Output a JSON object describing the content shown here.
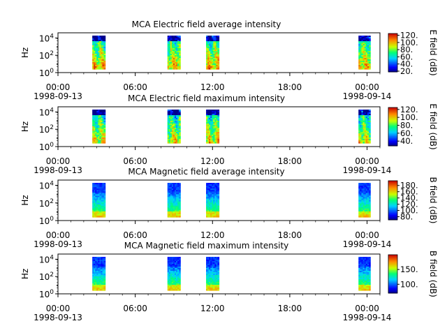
{
  "chart_data": [
    {
      "type": "heatmap",
      "title": "MCA  Electric field average intensity",
      "ylabel": "Hz",
      "y_scale": "log",
      "y_tick_labels": [
        "10^0",
        "10^2",
        "10^4"
      ],
      "x_tick_labels": [
        "00:00",
        "06:00",
        "12:00",
        "18:00",
        "00:00"
      ],
      "x_date_labels": [
        "1998-09-13",
        "1998-09-14"
      ],
      "xlim": [
        "1998-09-13 00:00",
        "1998-09-14 01:00"
      ],
      "colorbar": {
        "label": "E field (dB)",
        "range": [
          18,
          125
        ],
        "ticks": [
          "20.",
          "40.",
          "60.",
          "80.",
          "100.",
          "120."
        ]
      },
      "data_intervals": [
        [
          "02:40",
          "03:40"
        ],
        [
          "08:30",
          "09:30"
        ],
        [
          "11:30",
          "12:30"
        ],
        [
          "23:20",
          "00:15"
        ]
      ],
      "intensity_profile": "E-avg"
    },
    {
      "type": "heatmap",
      "title": "MCA  Electric field maximum intensity",
      "ylabel": "Hz",
      "y_scale": "log",
      "y_tick_labels": [
        "10^0",
        "10^2",
        "10^4"
      ],
      "x_tick_labels": [
        "00:00",
        "06:00",
        "12:00",
        "18:00",
        "00:00"
      ],
      "x_date_labels": [
        "1998-09-13",
        "1998-09-14"
      ],
      "xlim": [
        "1998-09-13 00:00",
        "1998-09-14 01:00"
      ],
      "colorbar": {
        "label": "E field (dB)",
        "range": [
          28,
          125
        ],
        "ticks": [
          "40.",
          "60.",
          "80.",
          "100.",
          "120."
        ]
      },
      "data_intervals": [
        [
          "02:40",
          "03:40"
        ],
        [
          "08:30",
          "09:30"
        ],
        [
          "11:30",
          "12:30"
        ],
        [
          "23:20",
          "00:15"
        ]
      ],
      "intensity_profile": "E-max"
    },
    {
      "type": "heatmap",
      "title": "MCA  Magnetic field average intensity",
      "ylabel": "Hz",
      "y_scale": "log",
      "y_tick_labels": [
        "10^0",
        "10^2",
        "10^4"
      ],
      "x_tick_labels": [
        "00:00",
        "06:00",
        "12:00",
        "18:00",
        "00:00"
      ],
      "x_date_labels": [
        "1998-09-13",
        "1998-09-14"
      ],
      "xlim": [
        "1998-09-13 00:00",
        "1998-09-14 01:00"
      ],
      "colorbar": {
        "label": "B field (dB)",
        "range": [
          70,
          195
        ],
        "ticks": [
          "80.",
          "100.",
          "120.",
          "140.",
          "160.",
          "180."
        ]
      },
      "data_intervals": [
        [
          "02:40",
          "03:40"
        ],
        [
          "08:30",
          "09:30"
        ],
        [
          "11:30",
          "12:30"
        ],
        [
          "23:20",
          "00:15"
        ]
      ],
      "intensity_profile": "B-avg"
    },
    {
      "type": "heatmap",
      "title": "MCA  Magnetic field maximum intensity",
      "ylabel": "Hz",
      "y_scale": "log",
      "y_tick_labels": [
        "10^0",
        "10^2",
        "10^4"
      ],
      "x_tick_labels": [
        "00:00",
        "06:00",
        "12:00",
        "18:00",
        "00:00"
      ],
      "x_date_labels": [
        "1998-09-13",
        "1998-09-14"
      ],
      "xlim": [
        "1998-09-13 00:00",
        "1998-09-14 01:00"
      ],
      "colorbar": {
        "label": "B field (dB)",
        "range": [
          70,
          200
        ],
        "ticks": [
          "100.",
          "150."
        ]
      },
      "data_intervals": [
        [
          "02:40",
          "03:40"
        ],
        [
          "08:30",
          "09:30"
        ],
        [
          "11:30",
          "12:30"
        ],
        [
          "23:20",
          "00:15"
        ]
      ],
      "intensity_profile": "B-max"
    }
  ]
}
